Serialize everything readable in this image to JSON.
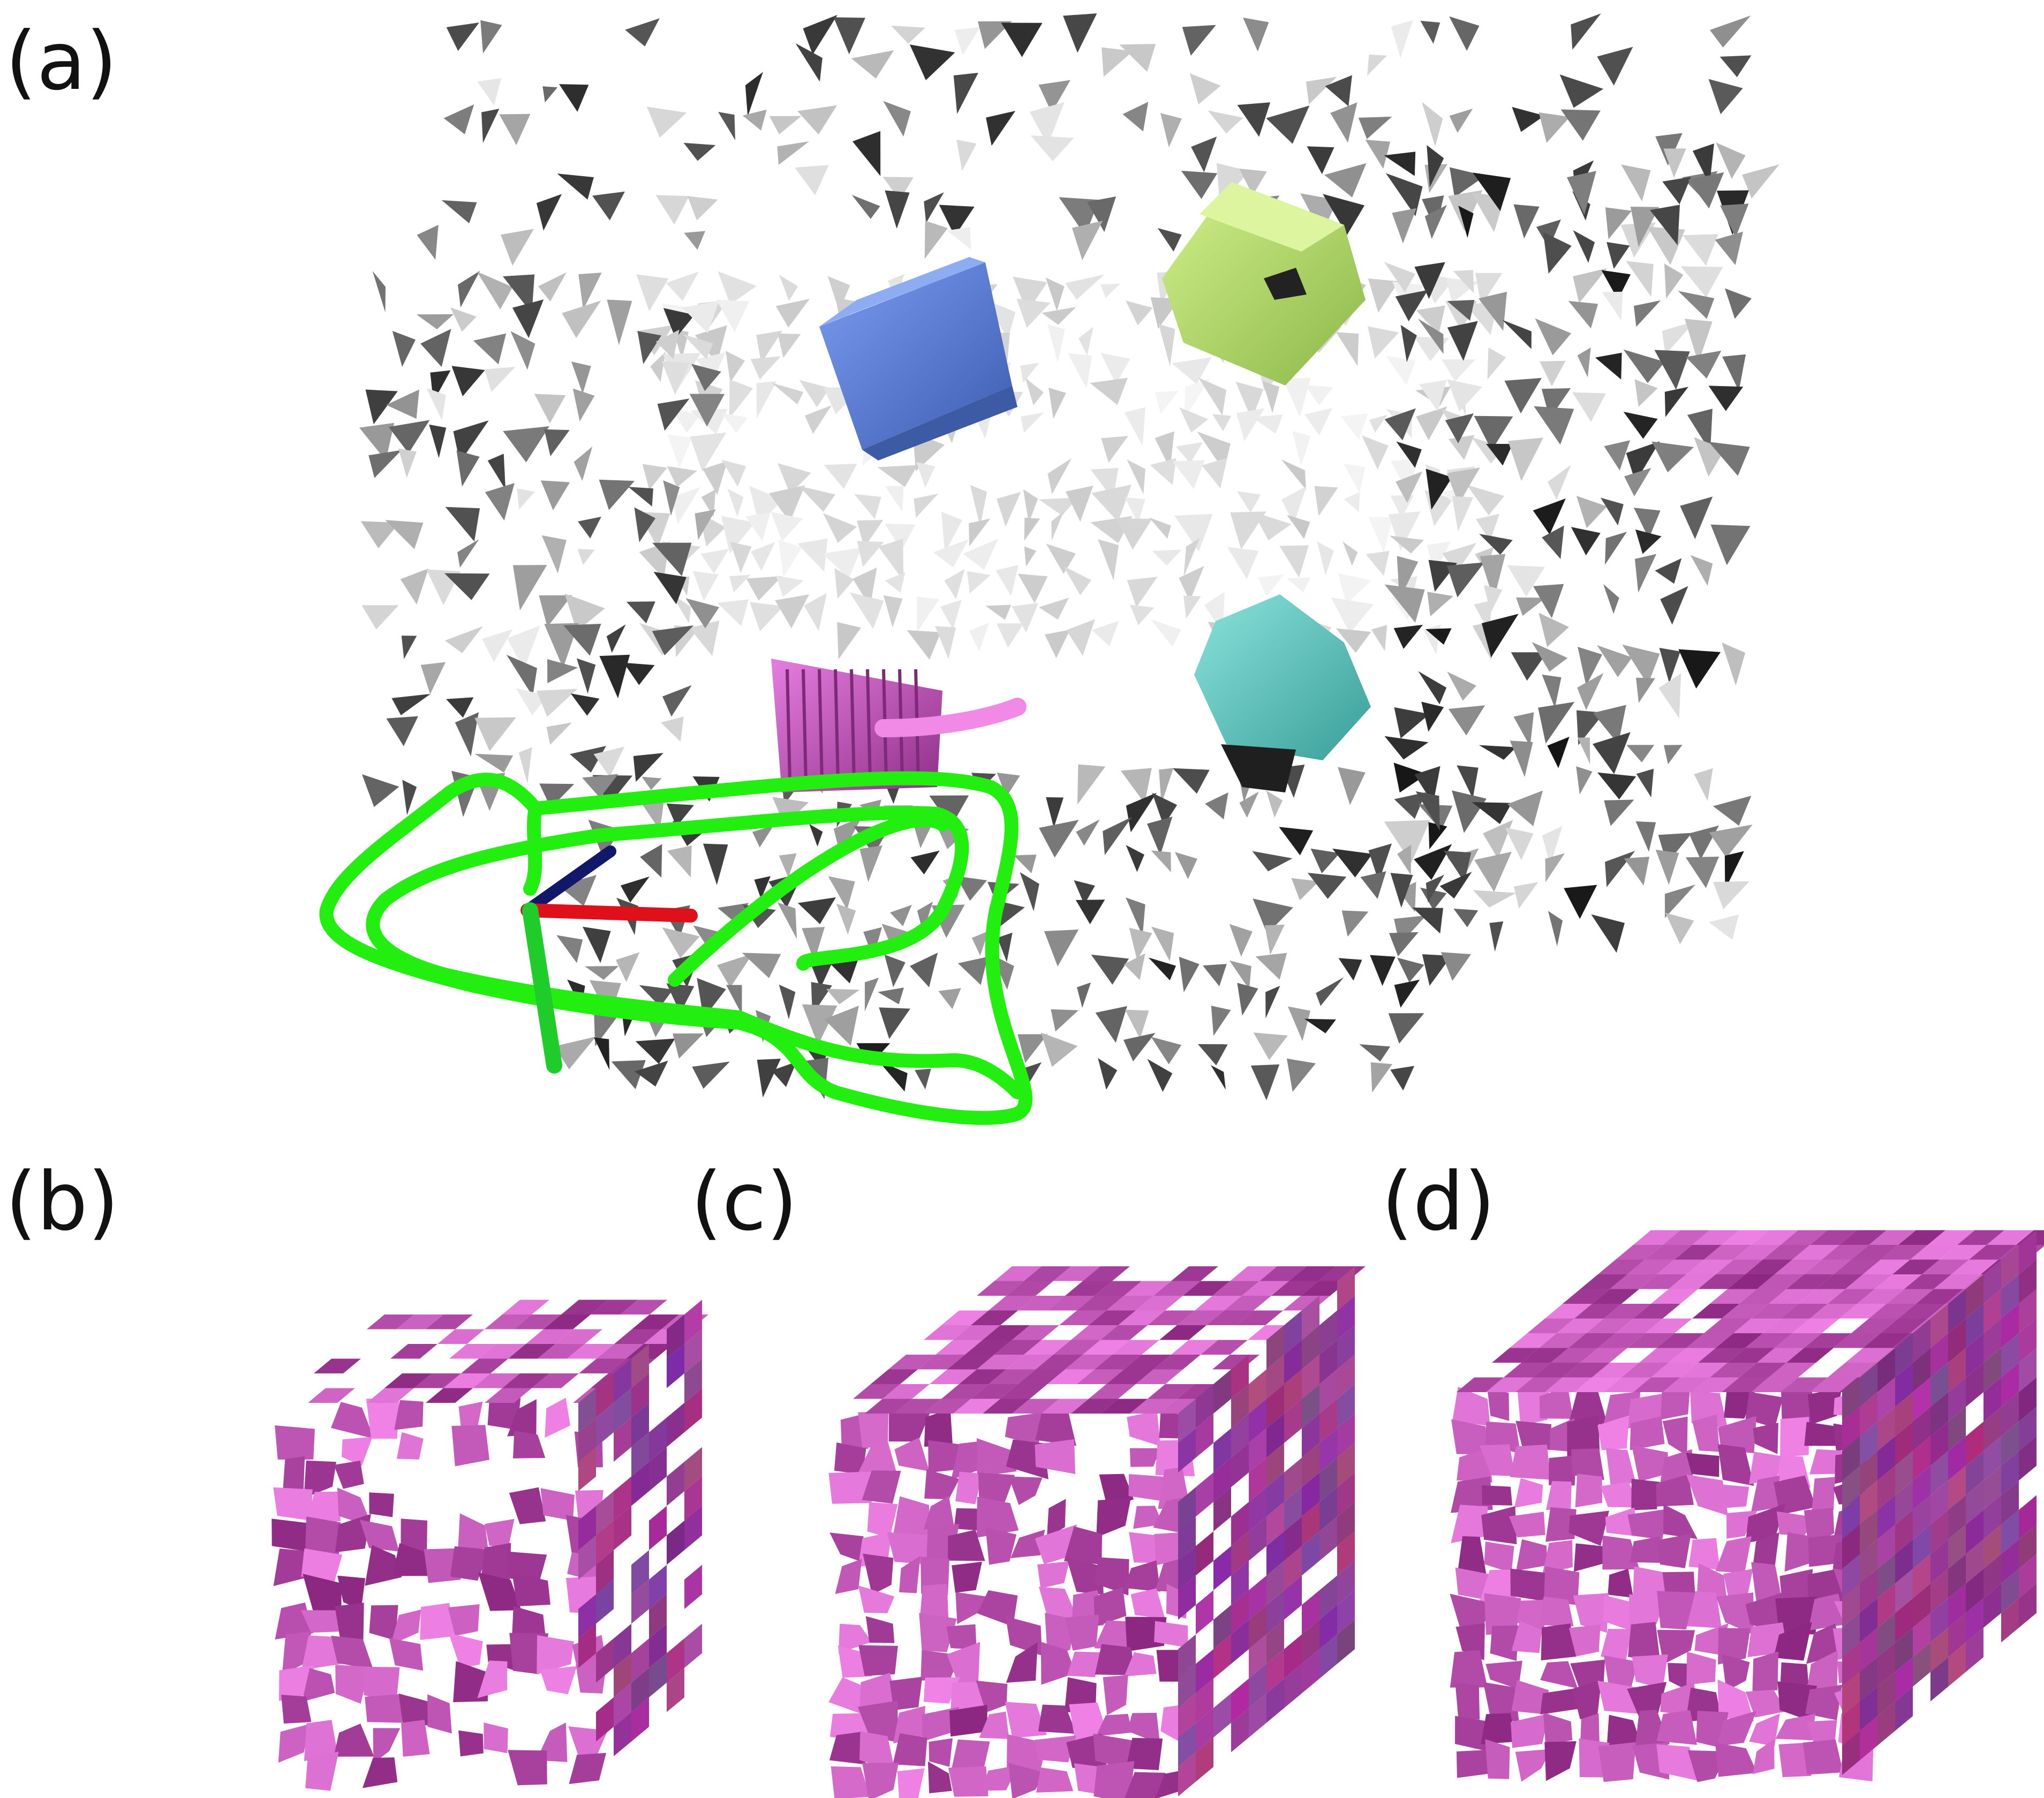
{
  "panels": {
    "a": {
      "label": "(a)"
    },
    "b": {
      "label": "(b)"
    },
    "c": {
      "label": "(c)"
    },
    "d": {
      "label": "(d)"
    }
  },
  "colors": {
    "mesh_light": "#e6e6e6",
    "mesh_mid": "#b4b4b4",
    "mesh_dark": "#3c3c3c",
    "blue_object": "#5b7fd6",
    "green_object": "#b8e06a",
    "teal_object": "#5cc7bf",
    "magenta_object": "#c94fc0",
    "trajectory": "#22ee10",
    "axis_x": "#e0101a",
    "axis_y": "#1fcc2a",
    "axis_z": "#10186a"
  }
}
